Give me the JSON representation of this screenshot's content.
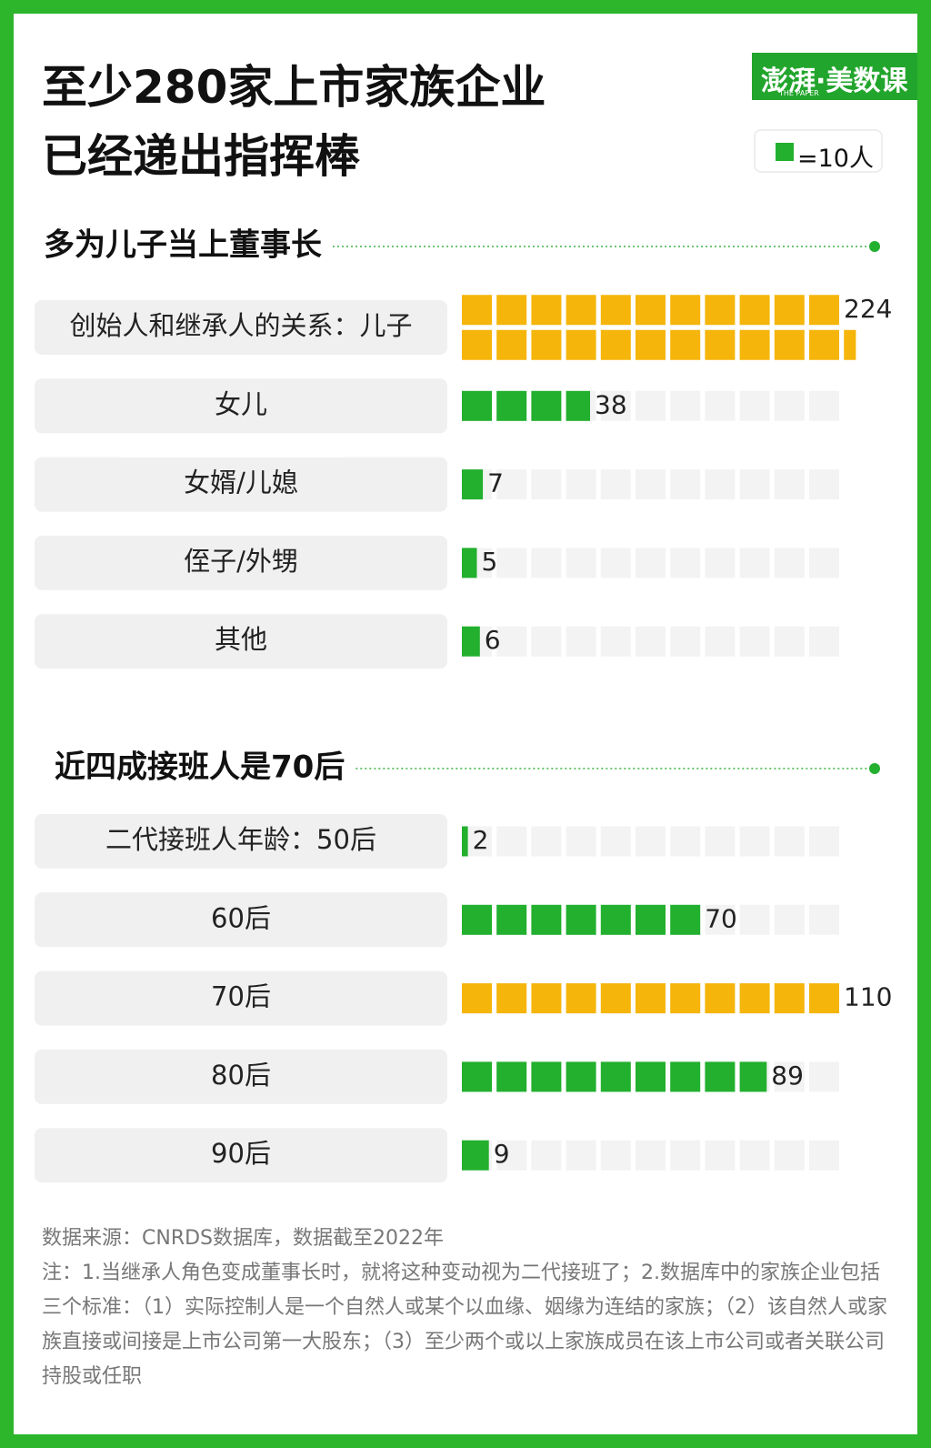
{
  "header": {
    "title": [
      "至少280家上市家族企业",
      "已经递出指挥棒"
    ],
    "logo": "澎湃·美数课",
    "logo_sub": "THE PAPER",
    "legend": {
      "value": 10,
      "label": "=10人"
    }
  },
  "chart_data": [
    {
      "type": "waffle",
      "title": "多为儿子当上董事长",
      "categories": [
        "创始人和继承人的关系：儿子",
        "女儿",
        "女婿/儿媳",
        "侄子/外甥",
        "其他"
      ],
      "values": [
        224,
        38,
        7,
        5,
        6
      ],
      "colors": [
        "#f5b50a",
        "#22b02e",
        "#22b02e",
        "#22b02e",
        "#22b02e"
      ],
      "xlim": [
        0,
        110
      ]
    },
    {
      "type": "waffle",
      "title": "近四成接班人是70后",
      "categories": [
        "二代接班人年龄：50后",
        "60后",
        "70后",
        "80后",
        "90后"
      ],
      "values": [
        2,
        70,
        110,
        89,
        9
      ],
      "colors": [
        "#22b02e",
        "#22b02e",
        "#f5b50a",
        "#22b02e",
        "#22b02e"
      ],
      "xlim": [
        0,
        110
      ]
    }
  ],
  "footer": {
    "source": "数据来源：CNRDS数据库，数据截至2022年",
    "note": "注：1.当继承人角色变成董事长时，就将这种变动视为二代接班了；2.数据库中的家族企业包括三个标准：（1）实际控制人是一个自然人或某个以血缘、姻缘为连结的家族；（2）该自然人或家族直接或间接是上市公司第一大股东；（3）至少两个或以上家族成员在该上市公司或者关联公司持股或任职"
  }
}
